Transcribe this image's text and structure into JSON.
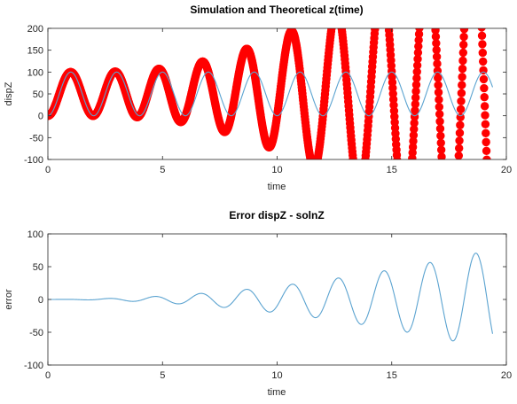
{
  "chart_data": [
    {
      "type": "scatter",
      "title": "Simulation and Theoretical z(time)",
      "xlabel": "time",
      "ylabel": "dispZ",
      "xlim": [
        0,
        20
      ],
      "ylim": [
        -100,
        200
      ],
      "xticks": [
        0,
        5,
        10,
        15,
        20
      ],
      "yticks": [
        -100,
        -50,
        0,
        50,
        100,
        150,
        200
      ],
      "grid": false,
      "legend": "none",
      "series": [
        {
          "kind": "markers",
          "color": "#ff0000",
          "x_range": [
            0,
            19.4
          ],
          "model": "50 - 50*cos(pi*t) + 1.2*t^2*sin(pi*t)",
          "samples_t": [
            0,
            1,
            2,
            3,
            4,
            5,
            6,
            7,
            8,
            9,
            10,
            11,
            12,
            13,
            14,
            15,
            16,
            17,
            18,
            19
          ],
          "samples_value": [
            0,
            100,
            0,
            100,
            -4,
            116,
            -13,
            127,
            -30,
            138,
            -40,
            150,
            -52,
            160,
            -60,
            170,
            -70,
            175,
            -75,
            180
          ]
        },
        {
          "kind": "line",
          "color": "#5ba3d0",
          "x_range": [
            0,
            19.4
          ],
          "model": "50 - 50*cos(pi*t)",
          "samples_t": [
            0,
            1,
            2,
            3,
            4,
            5
          ],
          "samples_value": [
            0,
            100,
            0,
            100,
            0,
            100
          ]
        }
      ]
    },
    {
      "type": "line",
      "title": "Error dispZ - solnZ",
      "xlabel": "time",
      "ylabel": "error",
      "xlim": [
        0,
        20
      ],
      "ylim": [
        -100,
        100
      ],
      "xticks": [
        0,
        5,
        10,
        15,
        20
      ],
      "yticks": [
        -100,
        -50,
        0,
        50,
        100
      ],
      "grid": false,
      "legend": "none",
      "series": [
        {
          "kind": "line",
          "color": "#5ba3d0",
          "x_range": [
            0,
            19.4
          ],
          "model": "(0.2*t^2 + 0.05*t) * sin(pi*t - 0.5)",
          "samples_t": [
            1.2,
            3.2,
            5.2,
            7.2,
            9.2,
            11.2,
            13.2,
            15.2,
            17.2,
            19.2
          ],
          "samples_value": [
            3,
            8,
            14,
            21,
            28,
            36,
            44,
            54,
            65,
            77
          ]
        }
      ]
    }
  ]
}
